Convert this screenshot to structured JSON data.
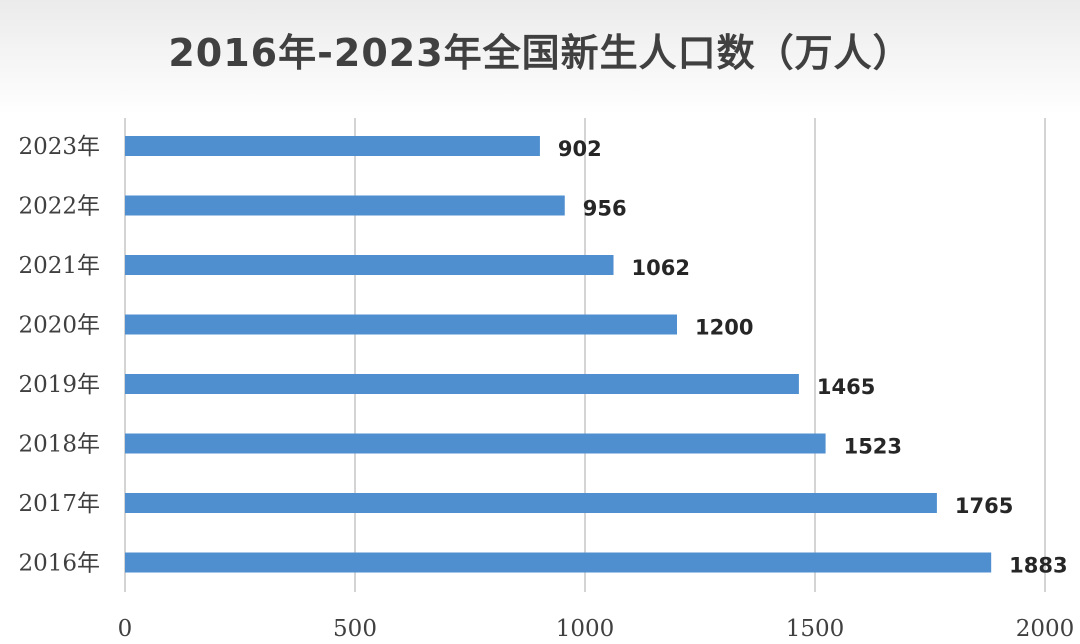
{
  "chart_data": {
    "type": "bar",
    "orientation": "horizontal",
    "title": "2016年-2023年全国新生人口数（万人）",
    "categories": [
      "2023年",
      "2022年",
      "2021年",
      "2020年",
      "2019年",
      "2018年",
      "2017年",
      "2016年"
    ],
    "values": [
      902,
      956,
      1062,
      1200,
      1465,
      1523,
      1765,
      1883
    ],
    "data_labels": [
      "902",
      "956",
      "1062",
      "1200",
      "1465",
      "1523",
      "1765",
      "1883"
    ],
    "xlim": [
      0,
      2000
    ],
    "x_ticks": [
      0,
      500,
      1000,
      1500,
      2000
    ],
    "x_tick_labels": [
      "0",
      "500",
      "1000",
      "1500",
      "2000"
    ],
    "grid": "vertical",
    "legend": "none",
    "bar_color": "#4f8fd0",
    "label_color": "#262626",
    "grid_color": "#d4d4d4"
  }
}
